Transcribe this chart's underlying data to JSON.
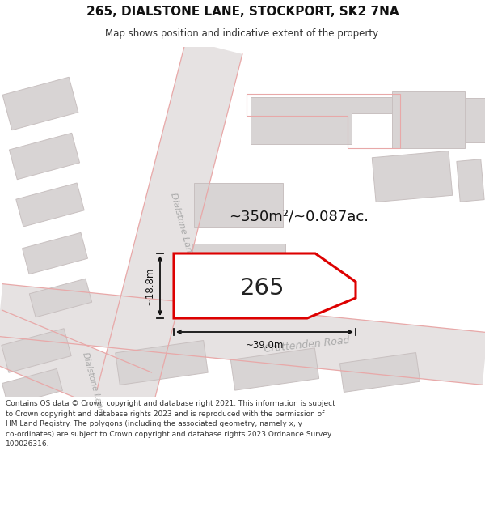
{
  "title": "265, DIALSTONE LANE, STOCKPORT, SK2 7NA",
  "subtitle": "Map shows position and indicative extent of the property.",
  "area_label": "~350m²/~0.087ac.",
  "number_label": "265",
  "width_label": "~39.0m",
  "height_label": "~18.8m",
  "footer_lines": [
    "Contains OS data © Crown copyright and database right 2021. This information is subject",
    "to Crown copyright and database rights 2023 and is reproduced with the permission of",
    "HM Land Registry. The polygons (including the associated geometry, namely x, y",
    "co-ordinates) are subject to Crown copyright and database rights 2023 Ordnance Survey",
    "100026316."
  ],
  "map_bg": "#f0eeee",
  "bld_fill": "#d8d4d4",
  "bld_edge": "#c8c0c0",
  "road_fill": "#e8e4e4",
  "prop_fill": "#ffffff",
  "prop_edge": "#dd0000",
  "road_label_color": "#aaaaaa",
  "dim_color": "#111111",
  "area_color": "#111111",
  "num_color": "#222222",
  "pink_outline": "#e8a8a8"
}
